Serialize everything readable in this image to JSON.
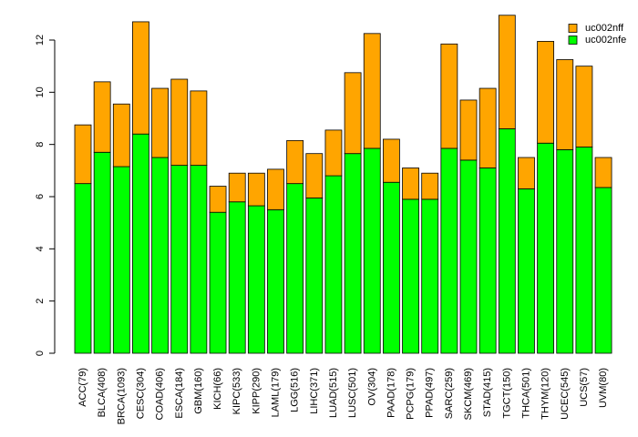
{
  "chart_data": {
    "type": "bar",
    "stacked": true,
    "title": "",
    "xlabel": "",
    "ylabel": "",
    "ylim": [
      0,
      13
    ],
    "yticks": [
      0,
      2,
      4,
      6,
      8,
      10,
      12
    ],
    "categories": [
      "ACC(79)",
      "BLCA(408)",
      "BRCA(1093)",
      "CESC(304)",
      "COAD(406)",
      "ESCA(184)",
      "GBM(160)",
      "KICH(66)",
      "KIPC(533)",
      "KIPP(290)",
      "LAML(179)",
      "LGG(516)",
      "LIHC(371)",
      "LUAD(515)",
      "LUSC(501)",
      "OV(304)",
      "PAAD(178)",
      "PCPG(179)",
      "PPAD(497)",
      "SARC(259)",
      "SKCM(469)",
      "STAD(415)",
      "TGCT(150)",
      "THCA(501)",
      "THYM(120)",
      "UCEC(545)",
      "UCS(57)",
      "UVM(80)"
    ],
    "series": [
      {
        "name": "uc002nfe",
        "color": "#00ff00",
        "values": [
          6.5,
          7.7,
          7.15,
          8.4,
          7.5,
          7.2,
          7.2,
          5.4,
          5.8,
          5.65,
          5.5,
          6.5,
          5.95,
          6.8,
          7.65,
          7.85,
          6.55,
          5.9,
          5.9,
          7.85,
          7.4,
          7.1,
          8.6,
          6.3,
          8.05,
          7.8,
          7.9,
          6.35
        ]
      },
      {
        "name": "uc002nff",
        "color": "#ffa500",
        "values": [
          2.25,
          2.7,
          2.4,
          4.3,
          2.65,
          3.3,
          2.85,
          1.0,
          1.1,
          1.25,
          1.55,
          1.65,
          1.7,
          1.75,
          3.1,
          4.4,
          1.65,
          1.2,
          1.0,
          4.0,
          2.3,
          3.05,
          4.35,
          1.2,
          3.9,
          3.45,
          3.1,
          1.15
        ]
      }
    ],
    "legend": {
      "position": "top-right",
      "entries": [
        "uc002nff",
        "uc002nfe"
      ]
    }
  }
}
